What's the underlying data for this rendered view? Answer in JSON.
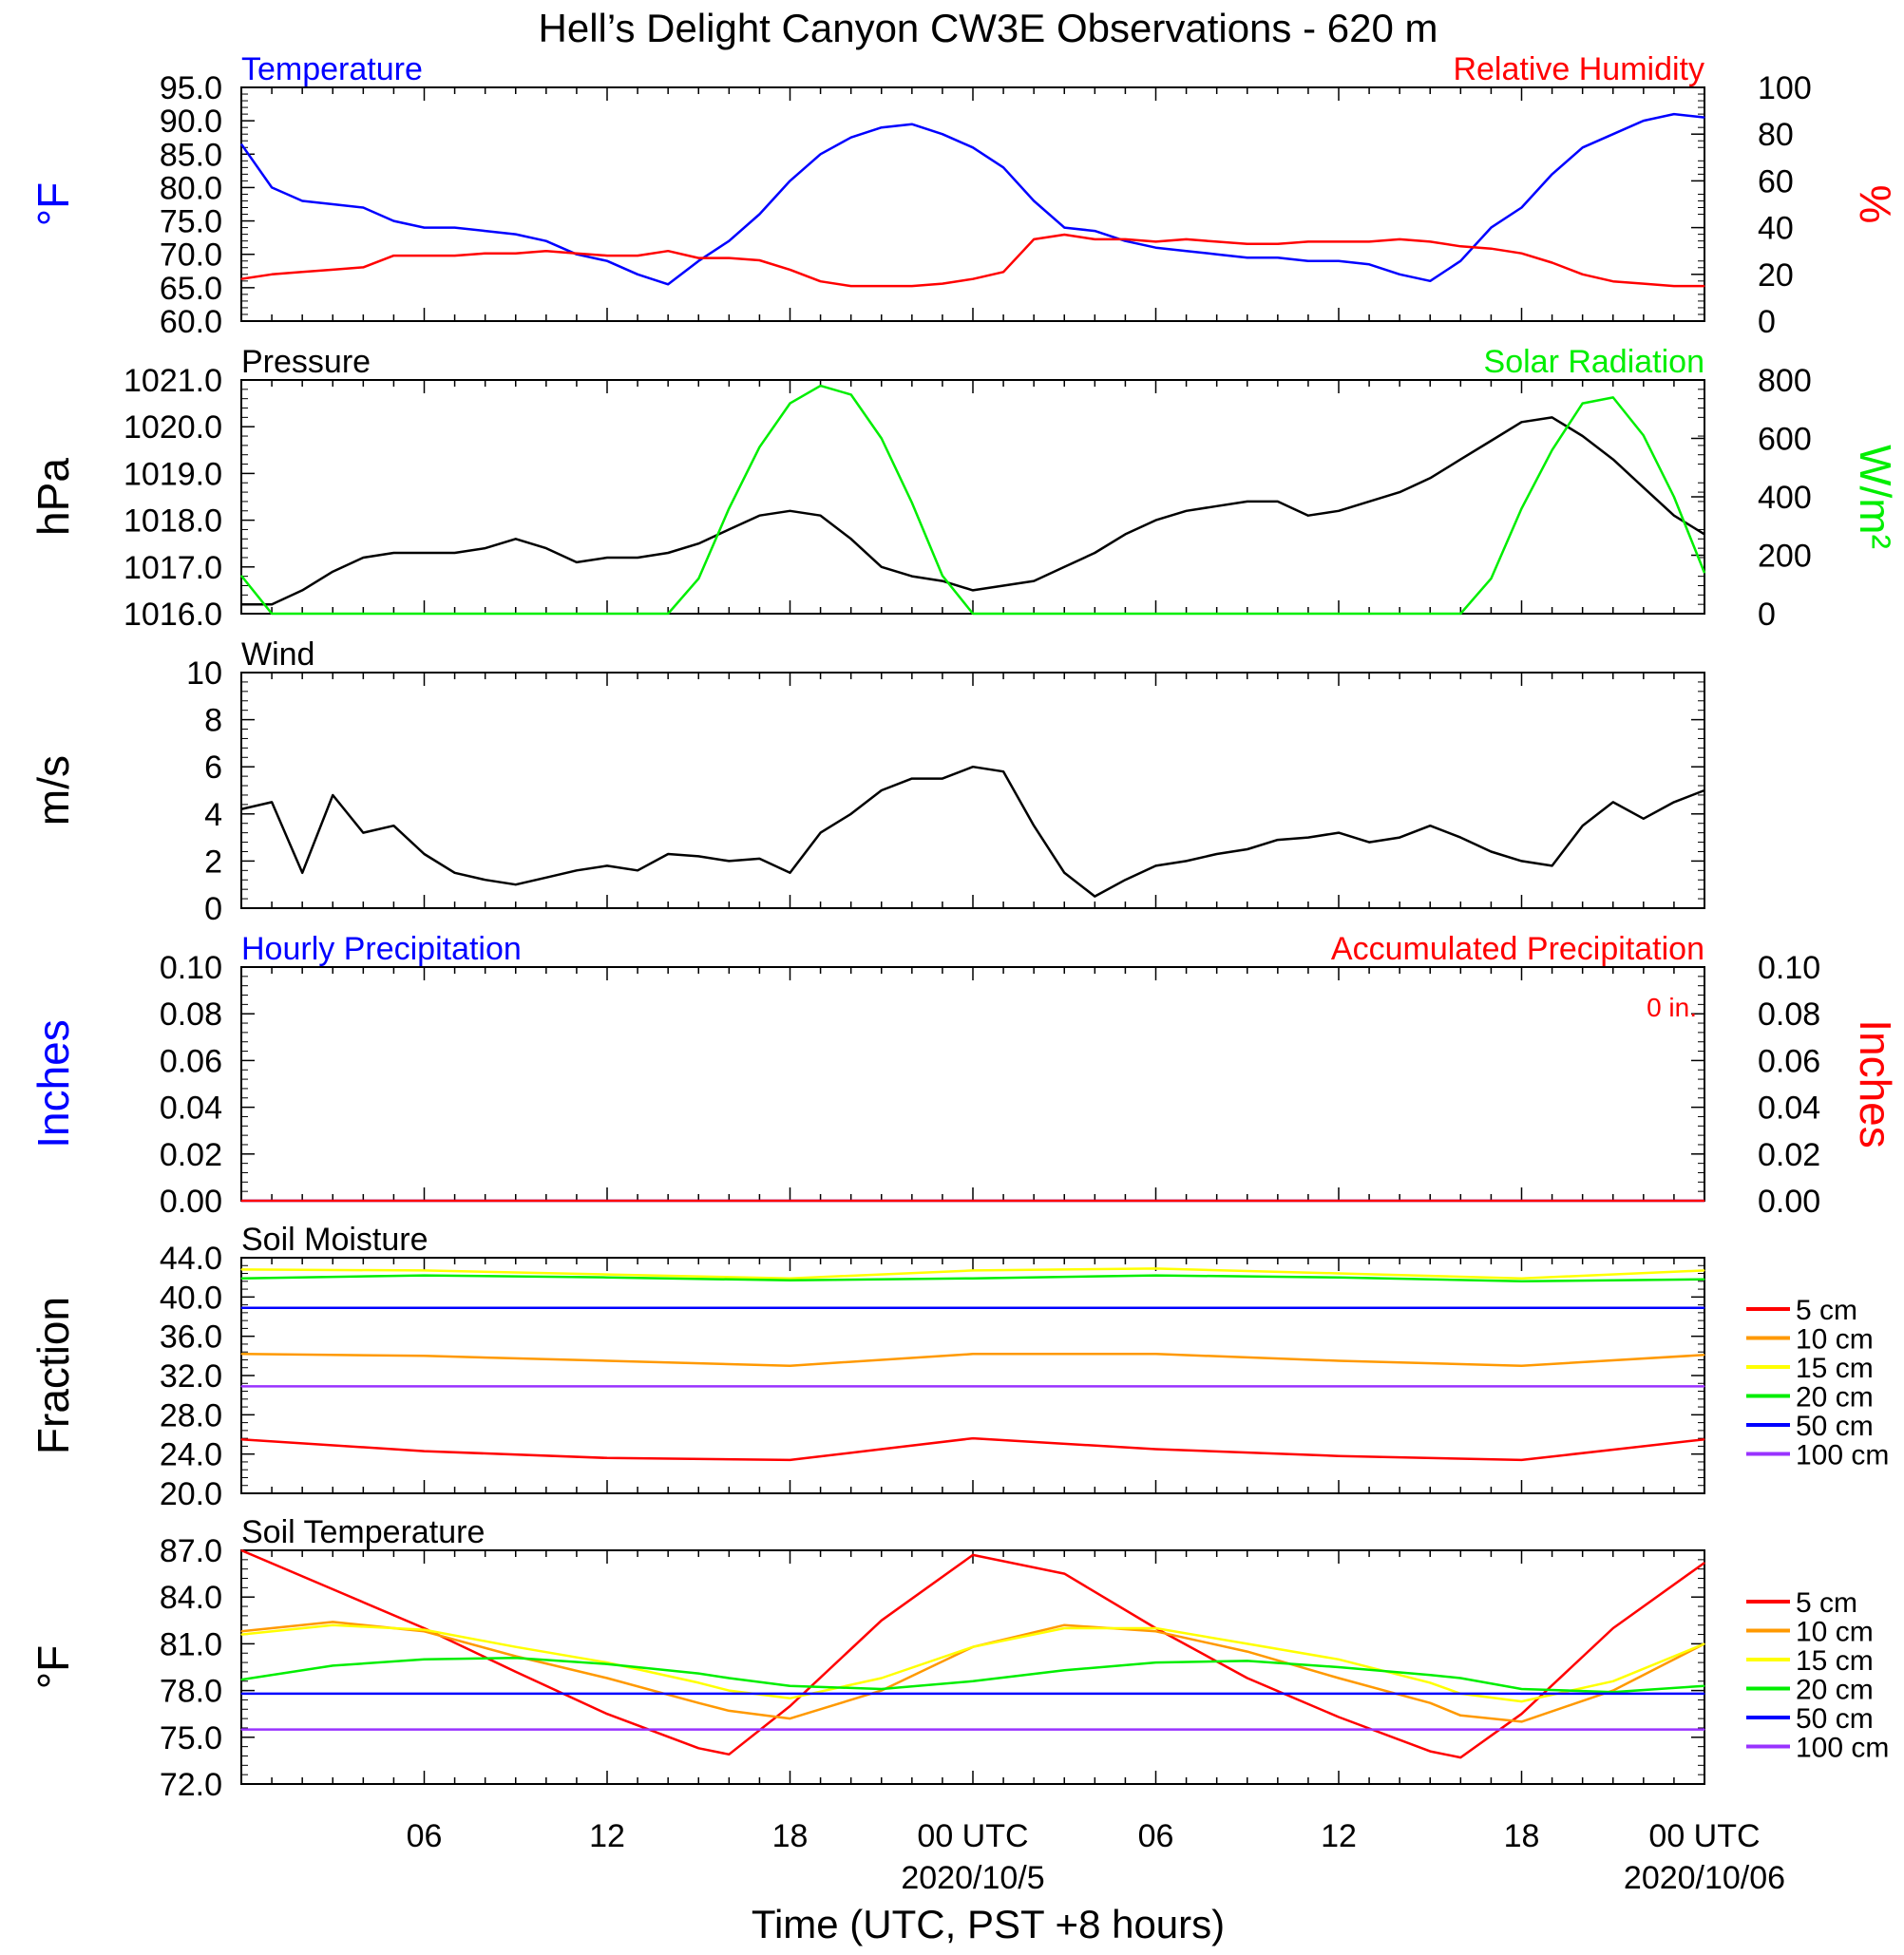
{
  "title": "Hell’s Delight Canyon CW3E Observations - 620 m",
  "xaxis": {
    "label": "Time (UTC, PST +8 hours)",
    "ticks": [
      {
        "hour": 6,
        "label": "06"
      },
      {
        "hour": 12,
        "label": "12"
      },
      {
        "hour": 18,
        "label": "18"
      },
      {
        "hour": 24,
        "label": "00 UTC",
        "date": "2020/10/5"
      },
      {
        "hour": 30,
        "label": "06"
      },
      {
        "hour": 36,
        "label": "12"
      },
      {
        "hour": 42,
        "label": "18"
      },
      {
        "hour": 48,
        "label": "00 UTC",
        "date": "2020/10/06"
      }
    ]
  },
  "colors": {
    "blue": "#0000ff",
    "red": "#ff0000",
    "green": "#00ee00",
    "black": "#000000",
    "orange": "#ff9900",
    "yellow": "#ffff00",
    "purple": "#9933ff"
  },
  "chart_data": [
    {
      "type": "line",
      "title_left": "Temperature",
      "title_right": "Relative Humidity",
      "ylabel_left": "°F",
      "ylabel_right": "%",
      "ylim_left": [
        60,
        95
      ],
      "ylim_right": [
        0,
        100
      ],
      "yticks_left": [
        "60.0",
        "65.0",
        "70.0",
        "75.0",
        "80.0",
        "85.0",
        "90.0",
        "95.0"
      ],
      "yticks_right": [
        "0",
        "20",
        "40",
        "60",
        "80",
        "100"
      ],
      "x_hours": [
        0,
        1,
        2,
        3,
        4,
        5,
        6,
        7,
        8,
        9,
        10,
        11,
        12,
        13,
        14,
        15,
        16,
        17,
        18,
        19,
        20,
        21,
        22,
        23,
        24,
        25,
        26,
        27,
        28,
        29,
        30,
        31,
        32,
        33,
        34,
        35,
        36,
        37,
        38,
        39,
        40,
        41,
        42,
        43,
        44,
        45,
        46,
        47,
        48
      ],
      "series": [
        {
          "axis": "left",
          "color": "blue",
          "values": [
            86.5,
            80,
            78,
            77.5,
            77,
            75,
            74,
            74,
            73.5,
            73,
            72,
            70,
            69,
            67,
            65.5,
            69,
            72,
            76,
            81,
            85,
            87.5,
            89,
            89.5,
            88,
            86,
            83,
            78,
            74,
            73.5,
            72,
            71,
            70.5,
            70,
            69.5,
            69.5,
            69,
            69,
            68.5,
            67,
            66,
            69,
            74,
            77,
            82,
            86,
            88,
            90,
            91,
            90.5
          ]
        },
        {
          "axis": "right",
          "color": "red",
          "values": [
            18,
            20,
            21,
            22,
            23,
            28,
            28,
            28,
            29,
            29,
            30,
            29,
            28,
            28,
            30,
            27,
            27,
            26,
            22,
            17,
            15,
            15,
            15,
            16,
            18,
            21,
            35,
            37,
            35,
            35,
            34,
            35,
            34,
            33,
            33,
            34,
            34,
            34,
            35,
            34,
            32,
            31,
            29,
            25,
            20,
            17,
            16,
            15,
            15
          ]
        }
      ]
    },
    {
      "type": "line",
      "title_left": "Pressure",
      "title_right": "Solar Radiation",
      "ylabel_left": "hPa",
      "ylabel_right": "W/m²",
      "ylim_left": [
        1016,
        1021
      ],
      "ylim_right": [
        0,
        800
      ],
      "yticks_left": [
        "1016.0",
        "1017.0",
        "1018.0",
        "1019.0",
        "1020.0",
        "1021.0"
      ],
      "yticks_right": [
        "0",
        "200",
        "400",
        "600",
        "800"
      ],
      "x_hours": [
        0,
        1,
        2,
        3,
        4,
        5,
        6,
        7,
        8,
        9,
        10,
        11,
        12,
        13,
        14,
        15,
        16,
        17,
        18,
        19,
        20,
        21,
        22,
        23,
        24,
        25,
        26,
        27,
        28,
        29,
        30,
        31,
        32,
        33,
        34,
        35,
        36,
        37,
        38,
        39,
        40,
        41,
        42,
        43,
        44,
        45,
        46,
        47,
        48
      ],
      "series": [
        {
          "axis": "left",
          "color": "black",
          "values": [
            1016.2,
            1016.2,
            1016.5,
            1016.9,
            1017.2,
            1017.3,
            1017.3,
            1017.3,
            1017.4,
            1017.6,
            1017.4,
            1017.1,
            1017.2,
            1017.2,
            1017.3,
            1017.5,
            1017.8,
            1018.1,
            1018.2,
            1018.1,
            1017.6,
            1017.0,
            1016.8,
            1016.7,
            1016.5,
            1016.6,
            1016.7,
            1017.0,
            1017.3,
            1017.7,
            1018.0,
            1018.2,
            1018.3,
            1018.4,
            1018.4,
            1018.1,
            1018.2,
            1018.4,
            1018.6,
            1018.9,
            1019.3,
            1019.7,
            1020.1,
            1020.2,
            1019.8,
            1019.3,
            1018.7,
            1018.1,
            1017.7
          ]
        },
        {
          "axis": "right",
          "color": "green",
          "values": [
            130,
            0,
            0,
            0,
            0,
            0,
            0,
            0,
            0,
            0,
            0,
            0,
            0,
            0,
            0,
            120,
            360,
            570,
            720,
            780,
            750,
            600,
            380,
            130,
            0,
            0,
            0,
            0,
            0,
            0,
            0,
            0,
            0,
            0,
            0,
            0,
            0,
            0,
            0,
            0,
            0,
            120,
            360,
            560,
            720,
            740,
            610,
            400,
            140
          ]
        }
      ]
    },
    {
      "type": "line",
      "title_left": "Wind",
      "ylabel_left": "m/s",
      "ylim_left": [
        0,
        10
      ],
      "yticks_left": [
        "0",
        "2",
        "4",
        "6",
        "8",
        "10"
      ],
      "x_hours": [
        0,
        1,
        2,
        3,
        4,
        5,
        6,
        7,
        8,
        9,
        10,
        11,
        12,
        13,
        14,
        15,
        16,
        17,
        18,
        19,
        20,
        21,
        22,
        23,
        24,
        25,
        26,
        27,
        28,
        29,
        30,
        31,
        32,
        33,
        34,
        35,
        36,
        37,
        38,
        39,
        40,
        41,
        42,
        43,
        44,
        45,
        46,
        47,
        48
      ],
      "series": [
        {
          "axis": "left",
          "color": "black",
          "values": [
            4.2,
            4.5,
            1.5,
            4.8,
            3.2,
            3.5,
            2.3,
            1.5,
            1.2,
            1.0,
            1.3,
            1.6,
            1.8,
            1.6,
            2.3,
            2.2,
            2.0,
            2.1,
            1.5,
            3.2,
            4.0,
            5.0,
            5.5,
            5.5,
            6.0,
            5.8,
            3.5,
            1.5,
            0.5,
            1.2,
            1.8,
            2.0,
            2.3,
            2.5,
            2.9,
            3.0,
            3.2,
            2.8,
            3.0,
            3.5,
            3.0,
            2.4,
            2.0,
            1.8,
            3.5,
            4.5,
            3.8,
            4.5,
            5.0
          ]
        }
      ]
    },
    {
      "type": "line",
      "title_left": "Hourly Precipitation",
      "title_right": "Accumulated Precipitation",
      "annotation": "0 in.",
      "ylabel_left": "Inches",
      "ylabel_right": "Inches",
      "ylim_left": [
        0,
        0.1
      ],
      "ylim_right": [
        0,
        0.1
      ],
      "yticks_left": [
        "0.00",
        "0.02",
        "0.04",
        "0.06",
        "0.08",
        "0.10"
      ],
      "yticks_right": [
        "0.00",
        "0.02",
        "0.04",
        "0.06",
        "0.08",
        "0.10"
      ],
      "x_hours": [
        0,
        48
      ],
      "series": [
        {
          "axis": "left",
          "color": "blue",
          "values": [
            0,
            0
          ]
        },
        {
          "axis": "right",
          "color": "red",
          "values": [
            0,
            0
          ]
        }
      ]
    },
    {
      "type": "line",
      "title_left": "Soil Moisture",
      "ylabel_left": "Fraction",
      "ylim_left": [
        20,
        44
      ],
      "yticks_left": [
        "20.0",
        "24.0",
        "28.0",
        "32.0",
        "36.0",
        "40.0",
        "44.0"
      ],
      "x_hours": [
        0,
        6,
        12,
        18,
        24,
        30,
        36,
        42,
        48
      ],
      "series": [
        {
          "name": "5 cm",
          "color": "red",
          "values": [
            25.5,
            24.3,
            23.6,
            23.4,
            25.6,
            24.5,
            23.8,
            23.4,
            25.5
          ]
        },
        {
          "name": "10 cm",
          "color": "orange",
          "values": [
            34.2,
            34.0,
            33.5,
            33.0,
            34.2,
            34.2,
            33.5,
            33.0,
            34.1
          ]
        },
        {
          "name": "15 cm",
          "color": "yellow",
          "values": [
            42.8,
            42.7,
            42.3,
            41.9,
            42.7,
            42.9,
            42.4,
            41.9,
            42.7
          ]
        },
        {
          "name": "20 cm",
          "color": "green",
          "values": [
            41.9,
            42.2,
            42.0,
            41.7,
            41.9,
            42.2,
            42.0,
            41.6,
            41.8
          ]
        },
        {
          "name": "50 cm",
          "color": "blue",
          "values": [
            38.9,
            38.9,
            38.9,
            38.9,
            38.9,
            38.9,
            38.9,
            38.9,
            38.9
          ]
        },
        {
          "name": "100 cm",
          "color": "purple",
          "values": [
            30.9,
            30.9,
            30.9,
            30.9,
            30.9,
            30.9,
            30.9,
            30.9,
            30.9
          ]
        }
      ]
    },
    {
      "type": "line",
      "title_left": "Soil Temperature",
      "ylabel_left": "°F",
      "ylim_left": [
        72,
        87
      ],
      "yticks_left": [
        "72.0",
        "75.0",
        "78.0",
        "81.0",
        "84.0",
        "87.0"
      ],
      "x_hours": [
        0,
        3,
        6,
        9,
        12,
        15,
        16,
        18,
        21,
        24,
        27,
        30,
        33,
        36,
        39,
        40,
        42,
        45,
        48
      ],
      "series": [
        {
          "name": "5 cm",
          "color": "red",
          "values": [
            87.0,
            84.5,
            82.0,
            79.2,
            76.5,
            74.3,
            73.9,
            77.0,
            82.5,
            86.7,
            85.5,
            82.0,
            78.8,
            76.3,
            74.1,
            73.7,
            76.5,
            82.0,
            86.2
          ]
        },
        {
          "name": "10 cm",
          "color": "orange",
          "values": [
            81.8,
            82.4,
            81.8,
            80.2,
            78.8,
            77.2,
            76.7,
            76.2,
            78.0,
            80.8,
            82.2,
            81.8,
            80.5,
            78.8,
            77.2,
            76.4,
            76.0,
            78.0,
            81.0
          ]
        },
        {
          "name": "15 cm",
          "color": "yellow",
          "values": [
            81.6,
            82.2,
            81.9,
            80.8,
            79.8,
            78.5,
            78.0,
            77.5,
            78.8,
            80.8,
            82.0,
            82.0,
            81.0,
            80.0,
            78.5,
            77.8,
            77.3,
            78.6,
            81.0
          ]
        },
        {
          "name": "20 cm",
          "color": "green",
          "values": [
            78.7,
            79.6,
            80.0,
            80.1,
            79.7,
            79.1,
            78.8,
            78.3,
            78.1,
            78.6,
            79.3,
            79.8,
            79.9,
            79.5,
            79.0,
            78.8,
            78.1,
            77.9,
            78.3
          ]
        },
        {
          "name": "50 cm",
          "color": "blue",
          "values": [
            77.8,
            77.8,
            77.8,
            77.8,
            77.8,
            77.8,
            77.8,
            77.8,
            77.8,
            77.8,
            77.8,
            77.8,
            77.8,
            77.8,
            77.8,
            77.8,
            77.8,
            77.8,
            77.8
          ]
        },
        {
          "name": "100 cm",
          "color": "purple",
          "values": [
            75.5,
            75.5,
            75.5,
            75.5,
            75.5,
            75.5,
            75.5,
            75.5,
            75.5,
            75.5,
            75.5,
            75.5,
            75.5,
            75.5,
            75.5,
            75.5,
            75.5,
            75.5,
            75.5
          ]
        }
      ]
    }
  ]
}
